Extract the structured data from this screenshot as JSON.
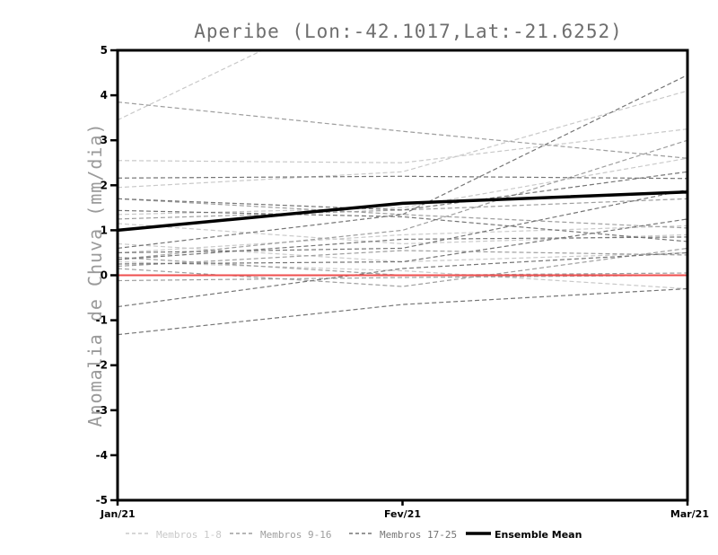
{
  "title": "Aperibe (Lon:-42.1017,Lat:-21.6252)",
  "y_axis": {
    "label": "Anomalia de Chuva (mm/dia)",
    "ticks": [
      5,
      4,
      3,
      2,
      1,
      0,
      -1,
      -2,
      -3,
      -4,
      -5
    ],
    "min": -5,
    "max": 5
  },
  "x_axis": {
    "ticks": [
      "Jan/21",
      "Fev/21",
      "Mar/21"
    ]
  },
  "legend": {
    "items": [
      {
        "label": "Membros 1-8",
        "color": "#c9c9c9",
        "style": "dashed"
      },
      {
        "label": "Membros 9-16",
        "color": "#9e9e9e",
        "style": "dashed"
      },
      {
        "label": "Membros 17-25",
        "color": "#757575",
        "style": "dashed"
      },
      {
        "label": "Ensemble Mean",
        "color": "#000000",
        "style": "solid-thick"
      }
    ]
  },
  "colors": {
    "axis": "#000000",
    "zero_line": "#ef4e4e",
    "mean_line": "#000000",
    "members_1_8": "#c9c9c9",
    "members_9_16": "#9e9e9e",
    "members_17_25": "#757575",
    "title_text": "#6e6e6e",
    "ylabel_text": "#9a9a9a"
  },
  "chart_data": {
    "type": "line",
    "title": "Aperibe (Lon:-42.1017,Lat:-21.6252)",
    "xlabel": "",
    "ylabel": "Anomalia de Chuva (mm/dia)",
    "x": [
      "Jan/21",
      "Fev/21",
      "Mar/21"
    ],
    "ylim": [
      -5,
      5
    ],
    "grid": false,
    "legend_position": "bottom",
    "zero_line": {
      "name": "zero-reference",
      "color": "#ef4e4e",
      "values": [
        0,
        0,
        0
      ]
    },
    "ensemble_mean": {
      "name": "Ensemble Mean",
      "color": "#000000",
      "values": [
        1.0,
        1.6,
        1.85
      ]
    },
    "member_groups": [
      {
        "name": "Membros 1-8",
        "color": "#c9c9c9",
        "members": [
          {
            "values": [
              3.45,
              6.5,
              9.5
            ]
          },
          {
            "values": [
              2.55,
              2.5,
              3.25
            ]
          },
          {
            "values": [
              1.95,
              2.3,
              4.1
            ]
          },
          {
            "values": [
              1.35,
              1.5,
              2.6
            ]
          },
          {
            "values": [
              1.15,
              0.7,
              0.9
            ]
          },
          {
            "values": [
              0.7,
              0.3,
              0.5
            ]
          },
          {
            "values": [
              0.5,
              0.9,
              1.1
            ]
          },
          {
            "values": [
              0.3,
              0.1,
              -0.3
            ]
          }
        ]
      },
      {
        "name": "Membros 9-16",
        "color": "#9e9e9e",
        "members": [
          {
            "values": [
              3.85,
              3.2,
              2.6
            ]
          },
          {
            "values": [
              1.25,
              1.45,
              1.7
            ]
          },
          {
            "values": [
              0.35,
              1.0,
              3.0
            ]
          },
          {
            "values": [
              0.4,
              0.0,
              0.05
            ]
          },
          {
            "values": [
              0.2,
              0.55,
              0.45
            ]
          },
          {
            "values": [
              0.15,
              -0.25,
              0.6
            ]
          },
          {
            "values": [
              -0.12,
              -0.05,
              0.0
            ]
          },
          {
            "values": [
              1.7,
              1.35,
              1.05
            ]
          }
        ]
      },
      {
        "name": "Membros 17-25",
        "color": "#757575",
        "members": [
          {
            "values": [
              2.16,
              2.2,
              2.15
            ]
          },
          {
            "values": [
              1.7,
              1.45,
              2.3
            ]
          },
          {
            "values": [
              1.44,
              1.3,
              0.75
            ]
          },
          {
            "values": [
              0.6,
              1.35,
              4.45
            ]
          },
          {
            "values": [
              0.5,
              0.6,
              1.9
            ]
          },
          {
            "values": [
              0.35,
              0.8,
              0.85
            ]
          },
          {
            "values": [
              0.25,
              0.3,
              1.25
            ]
          },
          {
            "values": [
              -0.7,
              0.15,
              0.5
            ]
          },
          {
            "values": [
              -1.32,
              -0.65,
              -0.3
            ]
          }
        ]
      }
    ]
  }
}
